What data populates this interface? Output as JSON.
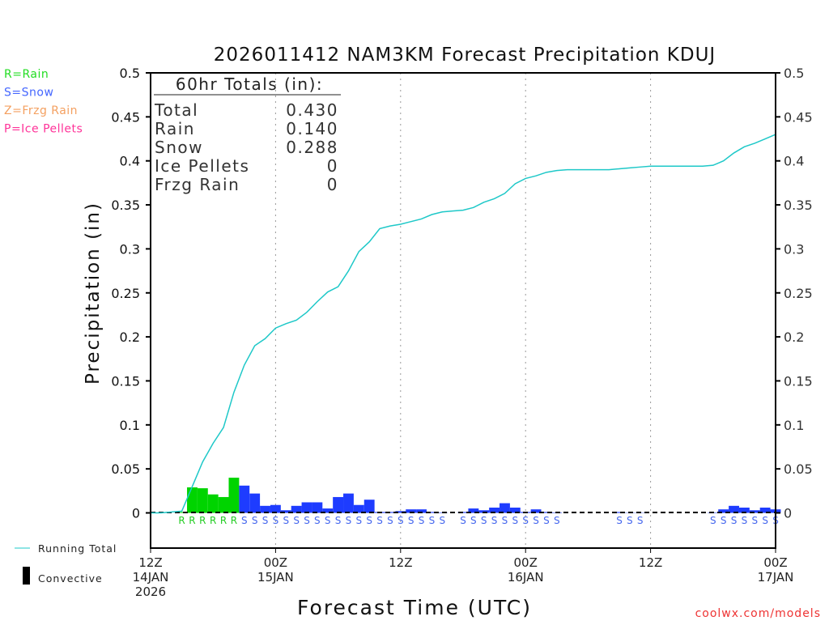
{
  "chart_data": {
    "type": "bar",
    "title": "2026011412 NAM3KM Forecast Precipitation KDUJ",
    "xlabel": "Forecast Time (UTC)",
    "ylabel": "Precipitation (in)",
    "ylim": [
      -0.04,
      0.5
    ],
    "xlim_hours": [
      0,
      60
    ],
    "yticks": [
      "0",
      "0.05",
      "0.1",
      "0.15",
      "0.2",
      "0.25",
      "0.3",
      "0.35",
      "0.4",
      "0.45",
      "0.5"
    ],
    "ytick_values": [
      0,
      0.05,
      0.1,
      0.15,
      0.2,
      0.25,
      0.3,
      0.35,
      0.4,
      0.45,
      0.5
    ],
    "xticks": [
      {
        "hour": 0,
        "lines": [
          "12Z",
          "14JAN",
          "2026"
        ]
      },
      {
        "hour": 12,
        "lines": [
          "00Z",
          "15JAN"
        ]
      },
      {
        "hour": 24,
        "lines": [
          "12Z"
        ]
      },
      {
        "hour": 36,
        "lines": [
          "00Z",
          "16JAN"
        ]
      },
      {
        "hour": 48,
        "lines": [
          "12Z"
        ]
      },
      {
        "hour": 60,
        "lines": [
          "00Z",
          "17JAN"
        ]
      }
    ],
    "grid": "vertical dotted at 00Z/12Z",
    "precip_type_legend": [
      {
        "label": "R=Rain",
        "color": "#22dd22"
      },
      {
        "label": "S=Snow",
        "color": "#4466ff"
      },
      {
        "label": "Z=Frzg Rain",
        "color": "#f4a060"
      },
      {
        "label": "P=Ice Pellets",
        "color": "#ff3399"
      }
    ],
    "series_legend": [
      {
        "label": "Running Total",
        "color": "#1ec8c8"
      },
      {
        "label": "Convective",
        "color": "#000000"
      }
    ],
    "colors": {
      "rain": "#00d400",
      "snow": "#1e3cff",
      "running": "#1ec8c8",
      "rain_label": "#22cc22",
      "snow_label": "#4466ee"
    },
    "hourly": [
      {
        "h": 1,
        "v": 0,
        "t": ""
      },
      {
        "h": 2,
        "v": 0,
        "t": ""
      },
      {
        "h": 3,
        "v": 0.001,
        "t": "R"
      },
      {
        "h": 4,
        "v": 0.029,
        "t": "R"
      },
      {
        "h": 5,
        "v": 0.028,
        "t": "R"
      },
      {
        "h": 6,
        "v": 0.021,
        "t": "R"
      },
      {
        "h": 7,
        "v": 0.018,
        "t": "R"
      },
      {
        "h": 8,
        "v": 0.04,
        "t": "R"
      },
      {
        "h": 9,
        "v": 0.031,
        "t": "S"
      },
      {
        "h": 10,
        "v": 0.022,
        "t": "S"
      },
      {
        "h": 11,
        "v": 0.008,
        "t": "S"
      },
      {
        "h": 12,
        "v": 0.009,
        "t": "S"
      },
      {
        "h": 13,
        "v": 0.003,
        "t": "S"
      },
      {
        "h": 14,
        "v": 0.008,
        "t": "S"
      },
      {
        "h": 15,
        "v": 0.012,
        "t": "S"
      },
      {
        "h": 16,
        "v": 0.012,
        "t": "S"
      },
      {
        "h": 17,
        "v": 0.005,
        "t": "S"
      },
      {
        "h": 18,
        "v": 0.018,
        "t": "S"
      },
      {
        "h": 19,
        "v": 0.022,
        "t": "S"
      },
      {
        "h": 20,
        "v": 0.009,
        "t": "S"
      },
      {
        "h": 21,
        "v": 0.015,
        "t": "S"
      },
      {
        "h": 22,
        "v": 0.001,
        "t": "S"
      },
      {
        "h": 23,
        "v": 0.001,
        "t": "S"
      },
      {
        "h": 24,
        "v": 0.002,
        "t": "S"
      },
      {
        "h": 25,
        "v": 0.004,
        "t": "S"
      },
      {
        "h": 26,
        "v": 0.004,
        "t": "S"
      },
      {
        "h": 27,
        "v": 0.001,
        "t": "S"
      },
      {
        "h": 28,
        "v": 0.0005,
        "t": "S"
      },
      {
        "h": 29,
        "v": 0,
        "t": ""
      },
      {
        "h": 30,
        "v": 0.001,
        "t": "S"
      },
      {
        "h": 31,
        "v": 0.005,
        "t": "S"
      },
      {
        "h": 32,
        "v": 0.003,
        "t": "S"
      },
      {
        "h": 33,
        "v": 0.006,
        "t": "S"
      },
      {
        "h": 34,
        "v": 0.011,
        "t": "S"
      },
      {
        "h": 35,
        "v": 0.006,
        "t": "S"
      },
      {
        "h": 36,
        "v": 0.001,
        "t": "S"
      },
      {
        "h": 37,
        "v": 0.004,
        "t": "S"
      },
      {
        "h": 38,
        "v": 0.001,
        "t": "S"
      },
      {
        "h": 39,
        "v": 0.0005,
        "t": "S"
      },
      {
        "h": 40,
        "v": 0,
        "t": ""
      },
      {
        "h": 41,
        "v": 0,
        "t": ""
      },
      {
        "h": 42,
        "v": 0,
        "t": ""
      },
      {
        "h": 43,
        "v": 0,
        "t": ""
      },
      {
        "h": 44,
        "v": 0,
        "t": ""
      },
      {
        "h": 45,
        "v": 0.001,
        "t": "S"
      },
      {
        "h": 46,
        "v": 0.0003,
        "t": "S"
      },
      {
        "h": 47,
        "v": 0.0003,
        "t": "S"
      },
      {
        "h": 48,
        "v": 0,
        "t": ""
      },
      {
        "h": 49,
        "v": 0,
        "t": ""
      },
      {
        "h": 50,
        "v": 0,
        "t": ""
      },
      {
        "h": 51,
        "v": 0,
        "t": ""
      },
      {
        "h": 52,
        "v": 0,
        "t": ""
      },
      {
        "h": 53,
        "v": 0,
        "t": ""
      },
      {
        "h": 54,
        "v": 0.0005,
        "t": "S"
      },
      {
        "h": 55,
        "v": 0.004,
        "t": "S"
      },
      {
        "h": 56,
        "v": 0.008,
        "t": "S"
      },
      {
        "h": 57,
        "v": 0.006,
        "t": "S"
      },
      {
        "h": 58,
        "v": 0.003,
        "t": "S"
      },
      {
        "h": 59,
        "v": 0.006,
        "t": "S"
      },
      {
        "h": 60,
        "v": 0.004,
        "t": "S"
      }
    ],
    "running_total": [
      0,
      0,
      0.001,
      0.002,
      0.03,
      0.058,
      0.079,
      0.097,
      0.137,
      0.168,
      0.19,
      0.198,
      0.21,
      0.215,
      0.219,
      0.228,
      0.24,
      0.251,
      0.257,
      0.275,
      0.297,
      0.308,
      0.323,
      0.326,
      0.328,
      0.331,
      0.334,
      0.339,
      0.342,
      0.343,
      0.344,
      0.347,
      0.353,
      0.357,
      0.363,
      0.374,
      0.38,
      0.383,
      0.387,
      0.389,
      0.39,
      0.39,
      0.39,
      0.39,
      0.39,
      0.391,
      0.392,
      0.393,
      0.394,
      0.394,
      0.394,
      0.394,
      0.394,
      0.394,
      0.395,
      0.4,
      0.409,
      0.416,
      0.42,
      0.425,
      0.43
    ]
  },
  "totals_box": {
    "heading": "60hr Totals (in):",
    "rows": [
      {
        "label": "Total",
        "value": "0.430"
      },
      {
        "label": "Rain",
        "value": "0.140"
      },
      {
        "label": "Snow",
        "value": "0.288"
      },
      {
        "label": "Ice Pellets",
        "value": "0"
      },
      {
        "label": "Frzg Rain",
        "value": "0"
      }
    ]
  },
  "credit": "coolwx.com/models"
}
